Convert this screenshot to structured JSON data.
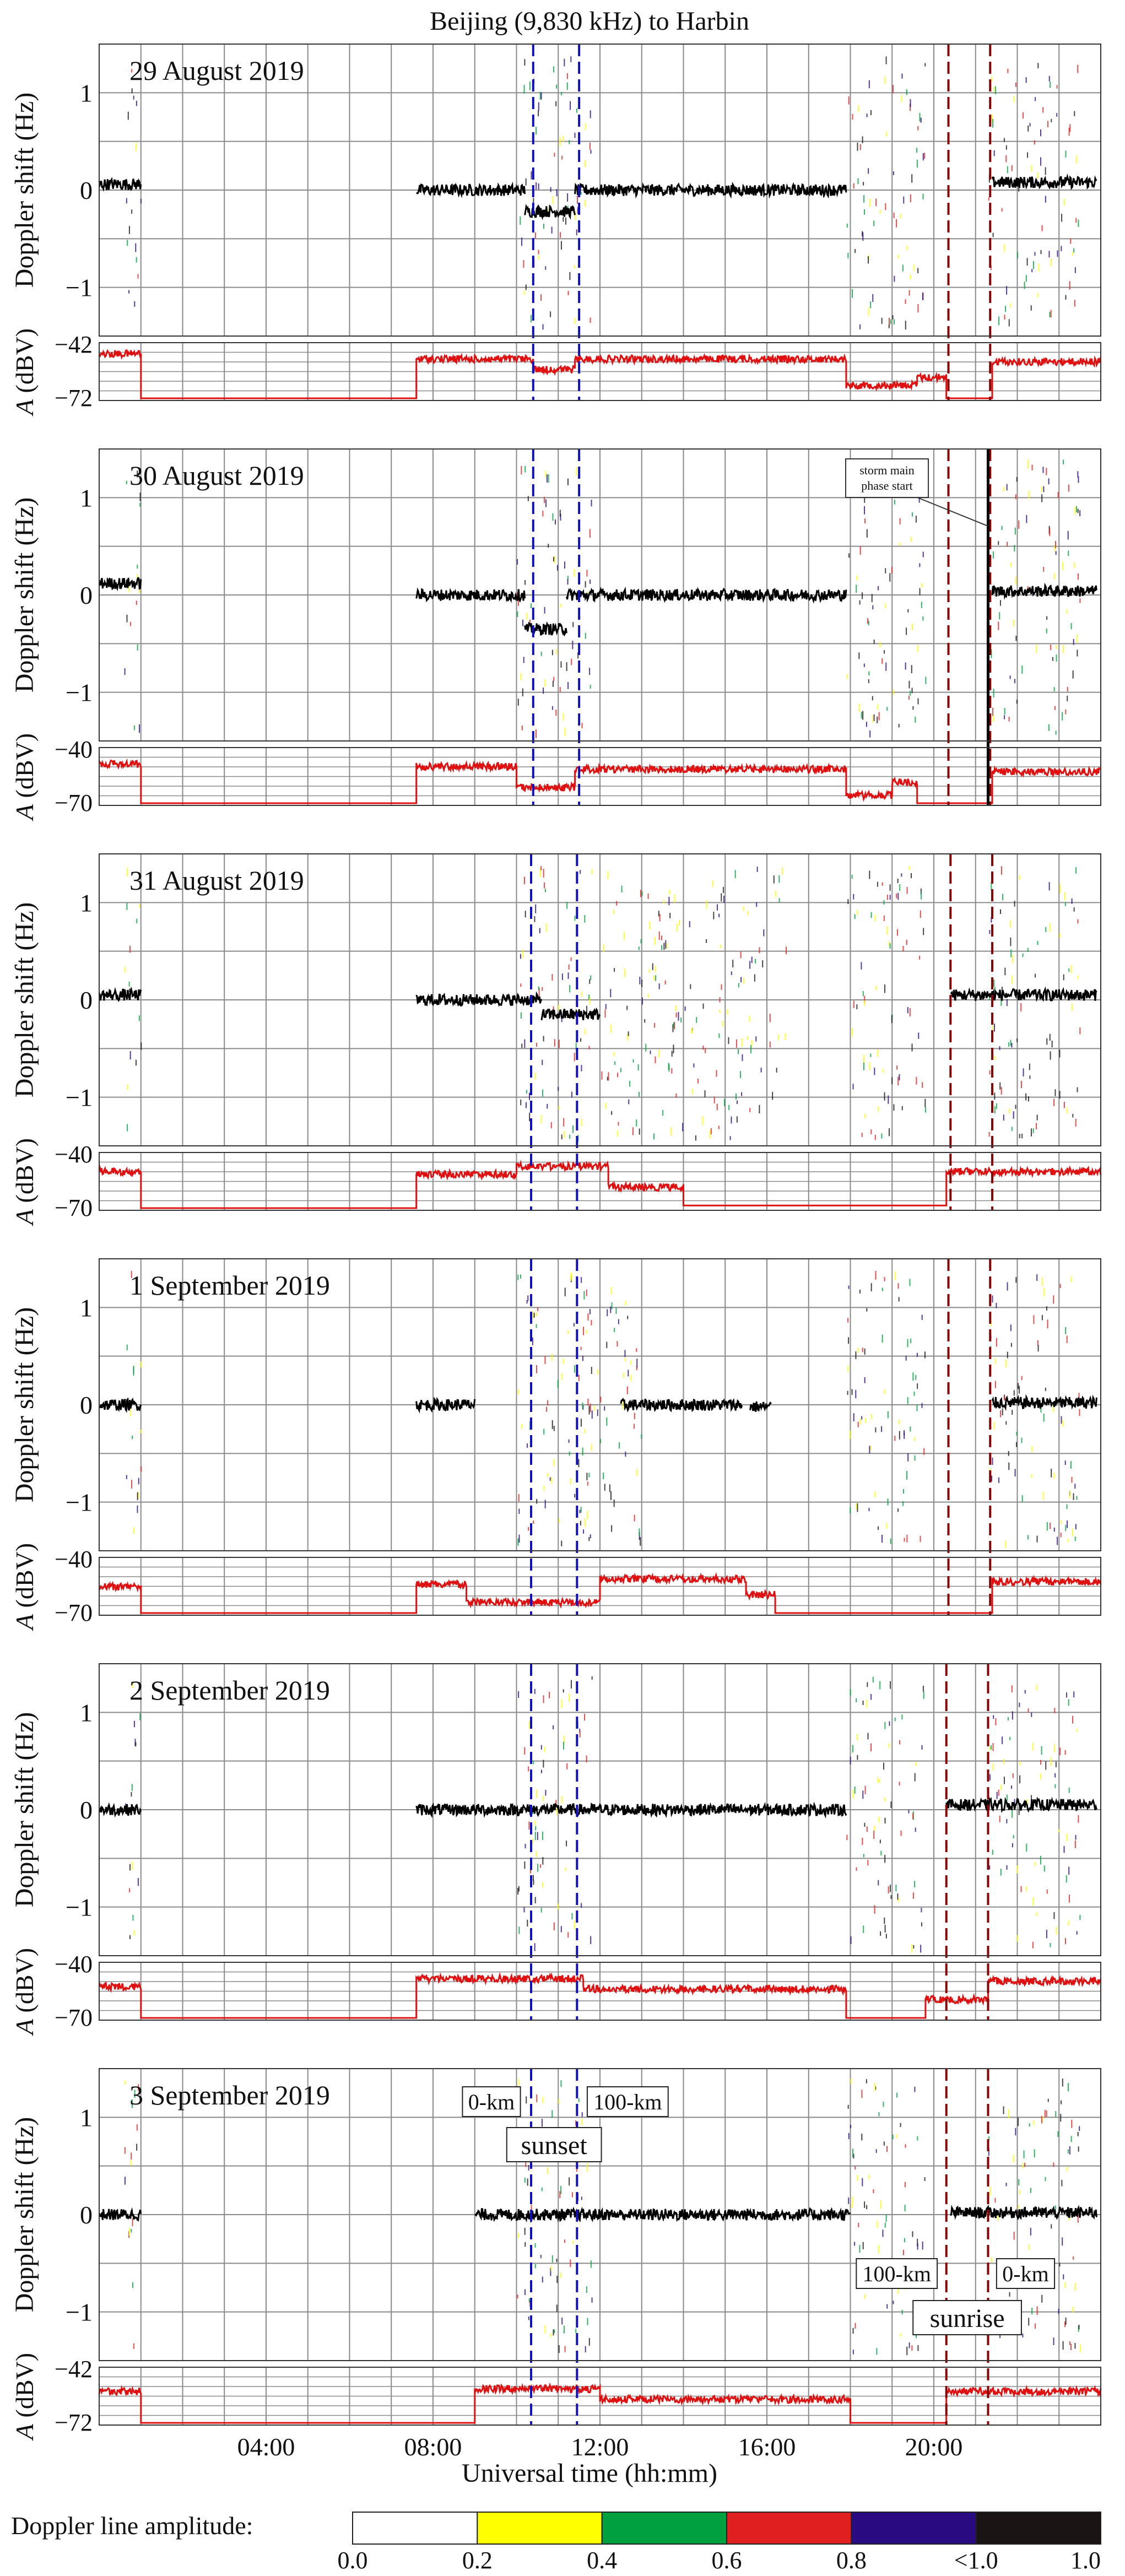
{
  "chart_data": {
    "type": "line",
    "title": "Beijing (9,830 kHz) to Harbin",
    "xlabel": "Universal time (hh:mm)",
    "x_ticks": [
      "04:00",
      "08:00",
      "12:00",
      "16:00",
      "20:00"
    ],
    "x_tick_hours": [
      4,
      8,
      12,
      16,
      20
    ],
    "xlim_hours": [
      0,
      24
    ],
    "grid": true,
    "doppler": {
      "ylabel": "Doppler shift (Hz)",
      "yticks": [
        "1",
        "0",
        "−1"
      ],
      "ytick_values": [
        1,
        0,
        -1
      ],
      "ylim": [
        -1.5,
        1.5
      ],
      "trace_color": "#000000"
    },
    "amplitude": {
      "ylabel": "A (dBV)",
      "ylabel_italic": "A",
      "ylabel_rest": " (dBV)",
      "trace_color": "#e01010"
    },
    "colorbar": {
      "label": "Doppler line amplitude:",
      "ticks": [
        "0.0",
        "0.2",
        "0.4",
        "0.6",
        "0.8",
        "<1.0",
        "1.0"
      ],
      "colors": [
        "#ffffff",
        "#ffff00",
        "#00a040",
        "#e02020",
        "#2a0a80",
        "#1a1414"
      ]
    },
    "terminator_lines": {
      "sunset_0km_color": "#1010c0",
      "sunrise_0km_color": "#8b0000"
    },
    "panels": [
      {
        "label": "29 August 2019",
        "amp_ticks": [
          "−42",
          "−72"
        ],
        "sunset_hours": [
          10.4,
          11.5
        ],
        "sunrise_hours": [
          20.35,
          21.35
        ],
        "doppler_segments": [
          [
            0.0,
            1.0,
            0.06
          ],
          [
            7.6,
            10.2,
            0.0
          ],
          [
            10.2,
            11.4,
            -0.22
          ],
          [
            11.4,
            17.9,
            0.0
          ],
          [
            21.4,
            23.9,
            0.08
          ]
        ],
        "amp_level": [
          [
            0.0,
            1.0,
            0.15
          ],
          [
            1.0,
            7.6,
            1.0
          ],
          [
            7.6,
            10.4,
            0.25
          ],
          [
            10.4,
            11.4,
            0.45
          ],
          [
            11.4,
            17.9,
            0.25
          ],
          [
            17.9,
            19.6,
            0.75
          ],
          [
            19.6,
            20.3,
            0.6
          ],
          [
            20.3,
            21.4,
            1.0
          ],
          [
            21.4,
            24.0,
            0.3
          ]
        ]
      },
      {
        "label": "30 August 2019",
        "amp_ticks": [
          "−40",
          "−70"
        ],
        "sunset_hours": [
          10.4,
          11.5
        ],
        "sunrise_hours": [
          20.35,
          21.35
        ],
        "storm_hour": 21.3,
        "annotation": "storm main phase start",
        "annotation_line1": "storm main",
        "annotation_line2": "phase start",
        "doppler_segments": [
          [
            0.0,
            1.0,
            0.12
          ],
          [
            7.6,
            10.2,
            0.0
          ],
          [
            10.2,
            11.2,
            -0.35
          ],
          [
            11.2,
            17.9,
            0.0
          ],
          [
            21.4,
            23.9,
            0.04
          ]
        ],
        "amp_level": [
          [
            0.0,
            1.0,
            0.25
          ],
          [
            1.0,
            7.6,
            1.0
          ],
          [
            7.6,
            10.0,
            0.3
          ],
          [
            10.0,
            11.4,
            0.7
          ],
          [
            11.4,
            17.9,
            0.35
          ],
          [
            17.9,
            19.0,
            0.85
          ],
          [
            19.0,
            19.6,
            0.6
          ],
          [
            19.6,
            21.4,
            1.0
          ],
          [
            21.4,
            24.0,
            0.4
          ]
        ]
      },
      {
        "label": "31 August 2019",
        "amp_ticks": [
          "−40",
          "−70"
        ],
        "sunset_hours": [
          10.35,
          11.45
        ],
        "sunrise_hours": [
          20.4,
          21.4
        ],
        "doppler_segments": [
          [
            0.0,
            1.0,
            0.05
          ],
          [
            7.6,
            10.6,
            0.0
          ],
          [
            10.6,
            12.0,
            -0.15
          ],
          [
            20.4,
            23.9,
            0.05
          ]
        ],
        "amp_level": [
          [
            0.0,
            1.0,
            0.3
          ],
          [
            1.0,
            7.6,
            1.0
          ],
          [
            7.6,
            10.0,
            0.35
          ],
          [
            10.0,
            12.2,
            0.2
          ],
          [
            12.2,
            14.0,
            0.6
          ],
          [
            14.0,
            20.3,
            0.95
          ],
          [
            20.3,
            24.0,
            0.3
          ]
        ]
      },
      {
        "label": "1 September 2019",
        "amp_ticks": [
          "−40",
          "−70"
        ],
        "sunset_hours": [
          10.35,
          11.45
        ],
        "sunrise_hours": [
          20.35,
          21.35
        ],
        "doppler_segments": [
          [
            0.0,
            1.0,
            0.0
          ],
          [
            7.6,
            9.0,
            0.0
          ],
          [
            12.5,
            15.4,
            0.0
          ],
          [
            15.6,
            16.1,
            -0.02
          ],
          [
            21.4,
            23.9,
            0.02
          ]
        ],
        "amp_level": [
          [
            0.0,
            1.0,
            0.5
          ],
          [
            1.0,
            7.6,
            1.0
          ],
          [
            7.6,
            8.8,
            0.45
          ],
          [
            8.8,
            12.0,
            0.8
          ],
          [
            12.0,
            15.5,
            0.35
          ],
          [
            15.5,
            16.2,
            0.65
          ],
          [
            16.2,
            21.4,
            1.0
          ],
          [
            21.4,
            24.0,
            0.4
          ]
        ]
      },
      {
        "label": "2 September 2019",
        "amp_ticks": [
          "−40",
          "−70"
        ],
        "sunset_hours": [
          10.35,
          11.45
        ],
        "sunrise_hours": [
          20.3,
          21.3
        ],
        "doppler_segments": [
          [
            0.0,
            1.0,
            0.0
          ],
          [
            7.6,
            17.9,
            0.0
          ],
          [
            20.3,
            23.9,
            0.05
          ]
        ],
        "amp_level": [
          [
            0.0,
            1.0,
            0.4
          ],
          [
            1.0,
            7.6,
            1.0
          ],
          [
            7.6,
            11.6,
            0.25
          ],
          [
            11.6,
            17.9,
            0.45
          ],
          [
            17.9,
            19.8,
            1.0
          ],
          [
            19.8,
            21.3,
            0.65
          ],
          [
            21.3,
            24.0,
            0.3
          ]
        ]
      },
      {
        "label": "3 September 2019",
        "amp_ticks": [
          "−42",
          "−72"
        ],
        "sunset_hours": [
          10.35,
          11.45
        ],
        "sunrise_hours": [
          20.3,
          21.3
        ],
        "doppler_segments": [
          [
            0.0,
            1.0,
            0.0
          ],
          [
            9.0,
            18.0,
            0.0
          ],
          [
            20.4,
            23.9,
            0.02
          ]
        ],
        "amp_level": [
          [
            0.0,
            1.0,
            0.4
          ],
          [
            1.0,
            9.0,
            1.0
          ],
          [
            9.0,
            12.0,
            0.35
          ],
          [
            12.0,
            18.0,
            0.55
          ],
          [
            18.0,
            20.3,
            1.0
          ],
          [
            20.3,
            24.0,
            0.4
          ]
        ],
        "labels": {
          "sunset_0km": "0-km",
          "sunset_100km": "100-km",
          "sunset": "sunset",
          "sunrise_100km": "100-km",
          "sunrise_0km": "0-km",
          "sunrise": "sunrise"
        }
      }
    ]
  }
}
